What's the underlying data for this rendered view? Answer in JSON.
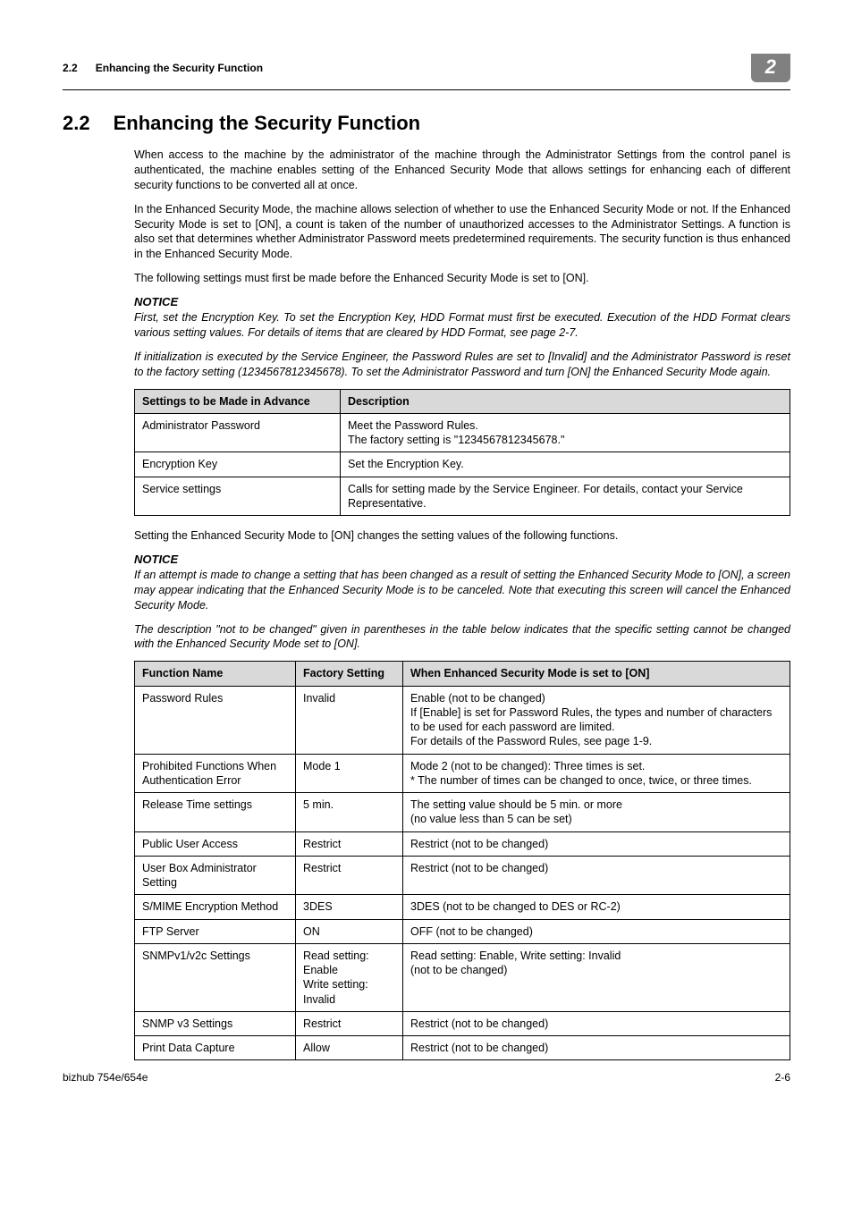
{
  "header": {
    "section_no": "2.2",
    "section_label": "Enhancing the Security Function",
    "chip": "2"
  },
  "title": {
    "num": "2.2",
    "text": "Enhancing the Security Function"
  },
  "para1": "When access to the machine by the administrator of the machine through the Administrator Settings from the control panel is authenticated, the machine enables setting of the Enhanced Security Mode that allows settings for enhancing each of different security functions to be converted all at once.",
  "para2": "In the Enhanced Security Mode, the machine allows selection of whether to use the Enhanced Security Mode or not. If the Enhanced Security Mode is set to [ON], a count is taken of the number of unauthorized accesses to the Administrator Settings. A function is also set that determines whether Administrator Password meets predetermined requirements. The security function is thus enhanced in the Enhanced Security Mode.",
  "para3": "The following settings must first be made before the Enhanced Security Mode is set to [ON].",
  "notice1_label": "NOTICE",
  "notice1_t1": "First, set the Encryption Key. To set the Encryption Key, HDD Format must first be executed. Execution of the HDD Format clears various setting values. For details of items that are cleared by HDD Format, see page 2-7.",
  "notice1_t2": "If initialization is executed by the Service Engineer, the Password Rules are set to [Invalid] and the Administrator Password is reset to the factory setting (1234567812345678). To set the Administrator Password and turn [ON] the Enhanced Security Mode again.",
  "table1": {
    "h1": "Settings to be Made in Advance",
    "h2": "Description",
    "rows": [
      [
        "Administrator Password",
        "Meet the Password Rules.\nThe factory setting is \"1234567812345678.\""
      ],
      [
        "Encryption Key",
        "Set the Encryption Key."
      ],
      [
        "Service settings",
        "Calls for setting made by the Service Engineer. For details, contact your Service Representative."
      ]
    ]
  },
  "para4": "Setting the Enhanced Security Mode to [ON] changes the setting values of the following functions.",
  "notice2_label": "NOTICE",
  "notice2_t1": "If an attempt is made to change a setting that has been changed as a result of setting the Enhanced Security Mode to [ON], a screen may appear indicating that the Enhanced Security Mode is to be canceled. Note that executing this screen will cancel the Enhanced Security Mode.",
  "notice2_t2": "The description \"not to be changed\" given in parentheses in the table below indicates that the specific setting cannot be changed with the Enhanced Security Mode set to [ON].",
  "table2": {
    "h1": "Function Name",
    "h2": "Factory Setting",
    "h3": "When Enhanced Security Mode is set to [ON]",
    "rows": [
      [
        "Password Rules",
        "Invalid",
        "Enable (not to be changed)\nIf [Enable] is set for Password Rules, the types and number of characters to be used for each password are limited.\nFor details of the Password Rules, see page 1-9."
      ],
      [
        "Prohibited Functions When Authentication Error",
        "Mode 1",
        "Mode 2 (not to be changed): Three times is set.\n* The number of times can be changed to once, twice, or three times."
      ],
      [
        "Release Time settings",
        "5 min.",
        "The setting value should be 5 min. or more\n(no value less than 5 can be set)"
      ],
      [
        "Public User Access",
        "Restrict",
        "Restrict (not to be changed)"
      ],
      [
        "User Box Administrator Setting",
        "Restrict",
        "Restrict (not to be changed)"
      ],
      [
        "S/MIME Encryption Method",
        "3DES",
        "3DES (not to be changed to DES or RC-2)"
      ],
      [
        "FTP Server",
        "ON",
        "OFF (not to be changed)"
      ],
      [
        "SNMPv1/v2c Settings",
        "Read setting: Enable\nWrite setting: Invalid",
        "Read setting: Enable, Write setting: Invalid\n(not to be changed)"
      ],
      [
        "SNMP v3 Settings",
        "Restrict",
        "Restrict (not to be changed)"
      ],
      [
        "Print Data Capture",
        "Allow",
        "Restrict (not to be changed)"
      ]
    ]
  },
  "footer": {
    "left": "bizhub 754e/654e",
    "right": "2-6"
  },
  "colors": {
    "chip_bg": "#808080",
    "chip_fg": "#ffffff",
    "th_bg": "#d9d9d9",
    "border": "#000000"
  },
  "cols": {
    "t1c1": "230px",
    "t2c1": "180px",
    "t2c2": "120px"
  }
}
